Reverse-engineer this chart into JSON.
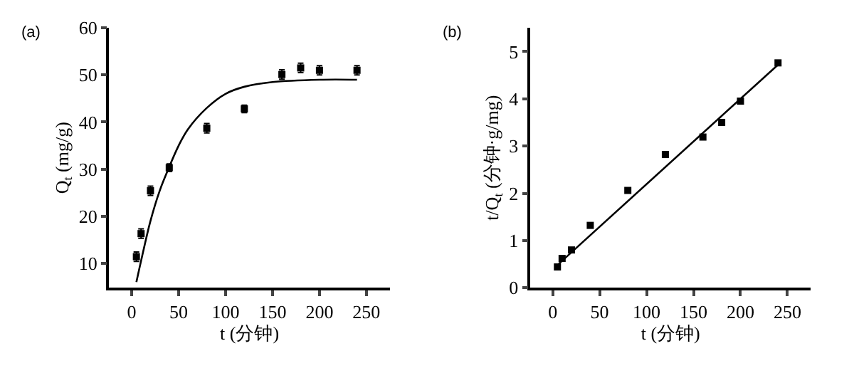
{
  "chart_data": [
    {
      "type": "scatter",
      "annotations": [
        "(a)"
      ],
      "xlabel": "t (分钟)",
      "ylabel": "Q$_{t}$ (mg/g)",
      "xlim": [
        -24,
        275
      ],
      "xticks": [
        0,
        50,
        100,
        150,
        200,
        250
      ],
      "ylim": [
        4.8,
        60
      ],
      "yticks": [
        10,
        20,
        30,
        40,
        50,
        60
      ],
      "series": [
        {
          "marker": "square",
          "color": "#000000",
          "x": [
            5,
            10,
            20,
            40,
            80,
            120,
            160,
            180,
            200,
            240
          ],
          "values": [
            11.4,
            16.3,
            25.4,
            30.3,
            38.7,
            42.8,
            50.1,
            51.5,
            51.0,
            51.0
          ],
          "errors": [
            1,
            1,
            1,
            0.8,
            1,
            0.8,
            1,
            1,
            1,
            1
          ]
        },
        {
          "type": "line",
          "line_style": "solid",
          "color": "#000000",
          "x": [
            5,
            10,
            20,
            30,
            40,
            50,
            60,
            80,
            100,
            120,
            150,
            200,
            240
          ],
          "values": [
            6,
            10.5,
            19,
            25.5,
            30.5,
            35,
            38.5,
            43,
            46,
            47.5,
            48.5,
            49,
            49
          ]
        }
      ]
    },
    {
      "type": "scatter",
      "annotations": [
        "(b)"
      ],
      "xlabel": "t (分钟)",
      "ylabel": "t/Q$_{t}$ (分钟·g/mg)",
      "xlim": [
        -24,
        275
      ],
      "xticks": [
        0,
        50,
        100,
        150,
        200,
        250
      ],
      "ylim": [
        0,
        5.5
      ],
      "yticks": [
        0,
        1,
        2,
        3,
        4,
        5
      ],
      "series": [
        {
          "marker": "square",
          "color": "#000000",
          "x": [
            5,
            10,
            20,
            40,
            80,
            120,
            160,
            180,
            200,
            240
          ],
          "values": [
            0.44,
            0.62,
            0.8,
            1.32,
            2.06,
            2.82,
            3.19,
            3.5,
            3.95,
            4.76
          ]
        },
        {
          "type": "line",
          "line_style": "solid",
          "color": "#000000",
          "x": [
            5,
            240
          ],
          "values": [
            0.48,
            4.72
          ]
        }
      ]
    }
  ]
}
